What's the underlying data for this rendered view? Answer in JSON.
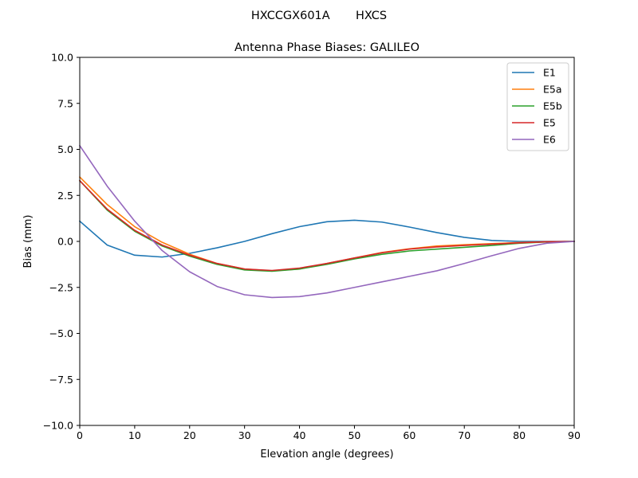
{
  "suptitle": "HXCCGX601A       HXCS",
  "chart_data": {
    "type": "line",
    "title": "Antenna Phase Biases: GALILEO",
    "xlabel": "Elevation angle (degrees)",
    "ylabel": "Bias (mm)",
    "xlim": [
      0,
      90
    ],
    "ylim": [
      -10,
      10
    ],
    "xticks": [
      0,
      10,
      20,
      30,
      40,
      50,
      60,
      70,
      80,
      90
    ],
    "xtick_labels": [
      "0",
      "10",
      "20",
      "30",
      "40",
      "50",
      "60",
      "70",
      "80",
      "90"
    ],
    "yticks": [
      10,
      7.5,
      5,
      2.5,
      0,
      -2.5,
      -5,
      -7.5,
      -10
    ],
    "ytick_labels": [
      "10.0",
      "7.5",
      "5.0",
      "2.5",
      "0.0",
      "−2.5",
      "−5.0",
      "−7.5",
      "−10.0"
    ],
    "grid": false,
    "legend_position": "top-right",
    "x": [
      0,
      5,
      10,
      15,
      20,
      25,
      30,
      35,
      40,
      45,
      50,
      55,
      60,
      65,
      70,
      75,
      80,
      85,
      90
    ],
    "series": [
      {
        "name": "E1",
        "color": "#1f77b4",
        "values": [
          1.1,
          -0.2,
          -0.75,
          -0.85,
          -0.65,
          -0.35,
          0.0,
          0.42,
          0.8,
          1.07,
          1.15,
          1.05,
          0.78,
          0.48,
          0.22,
          0.05,
          0.0,
          0.0,
          0.0
        ]
      },
      {
        "name": "E5a",
        "color": "#ff7f0e",
        "values": [
          3.5,
          2.0,
          0.8,
          -0.05,
          -0.7,
          -1.2,
          -1.5,
          -1.6,
          -1.5,
          -1.2,
          -0.9,
          -0.6,
          -0.4,
          -0.25,
          -0.18,
          -0.12,
          -0.06,
          -0.02,
          0.0
        ]
      },
      {
        "name": "E5b",
        "color": "#2ca02c",
        "values": [
          3.3,
          1.7,
          0.55,
          -0.25,
          -0.8,
          -1.25,
          -1.55,
          -1.62,
          -1.5,
          -1.25,
          -0.95,
          -0.7,
          -0.52,
          -0.42,
          -0.32,
          -0.22,
          -0.1,
          -0.03,
          0.0
        ]
      },
      {
        "name": "E5",
        "color": "#d62728",
        "values": [
          3.3,
          1.75,
          0.6,
          -0.2,
          -0.75,
          -1.2,
          -1.5,
          -1.58,
          -1.45,
          -1.2,
          -0.9,
          -0.62,
          -0.42,
          -0.3,
          -0.22,
          -0.15,
          -0.08,
          -0.02,
          0.0
        ]
      },
      {
        "name": "E6",
        "color": "#9467bd",
        "values": [
          5.2,
          3.0,
          1.1,
          -0.5,
          -1.65,
          -2.45,
          -2.9,
          -3.05,
          -3.0,
          -2.8,
          -2.5,
          -2.2,
          -1.9,
          -1.6,
          -1.2,
          -0.78,
          -0.38,
          -0.1,
          0.0
        ]
      }
    ]
  }
}
